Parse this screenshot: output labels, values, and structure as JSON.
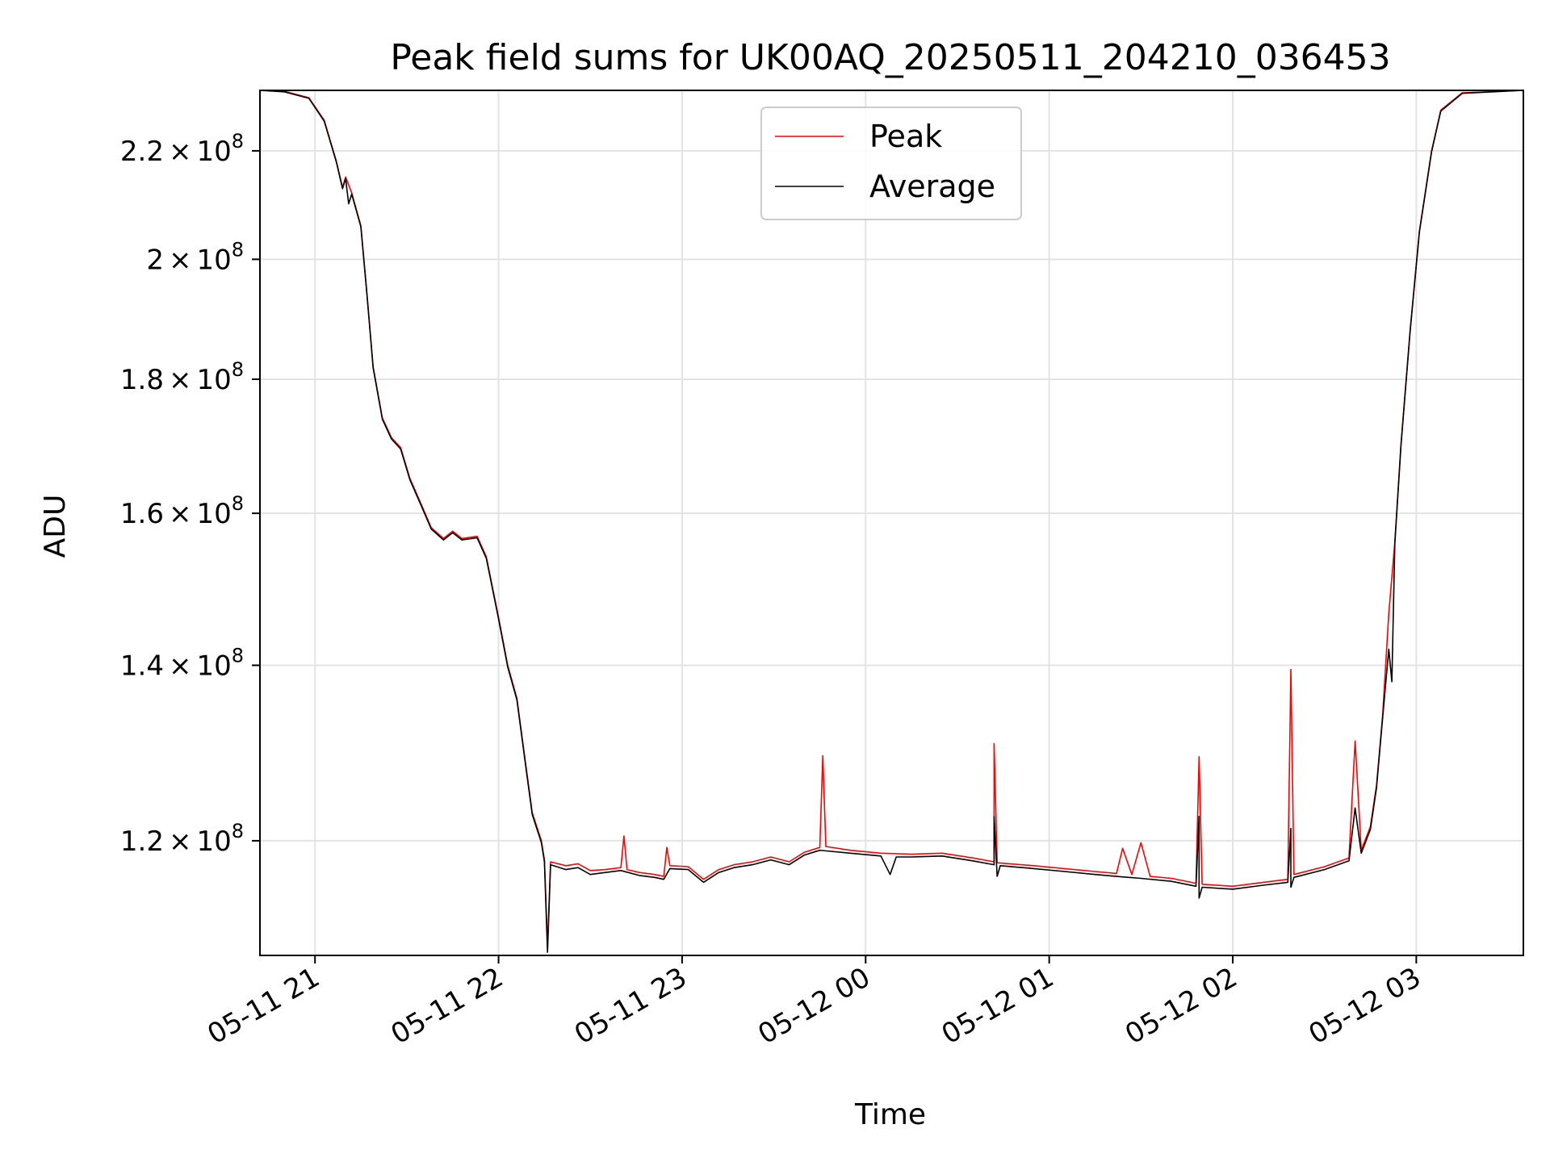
{
  "chart_data": {
    "type": "line",
    "title": "Peak field sums for UK00AQ_20250511_204210_036453",
    "xlabel": "Time",
    "ylabel": "ADU",
    "y_scale": "log",
    "grid": true,
    "legend_placement": "upper center",
    "xlim": [
      "2025-05-11 20:42",
      "2025-05-12 03:35"
    ],
    "ylim": [
      108500000,
      232000000
    ],
    "x_ticks": [
      {
        "value": "2025-05-11 21:00",
        "label": "05-11 21"
      },
      {
        "value": "2025-05-11 22:00",
        "label": "05-11 22"
      },
      {
        "value": "2025-05-11 23:00",
        "label": "05-11 23"
      },
      {
        "value": "2025-05-12 00:00",
        "label": "05-12 00"
      },
      {
        "value": "2025-05-12 01:00",
        "label": "05-12 01"
      },
      {
        "value": "2025-05-12 02:00",
        "label": "05-12 02"
      },
      {
        "value": "2025-05-12 03:00",
        "label": "05-12 03"
      }
    ],
    "y_ticks": [
      {
        "value": 120000000,
        "mantissa": "1.2"
      },
      {
        "value": 140000000,
        "mantissa": "1.4"
      },
      {
        "value": 160000000,
        "mantissa": "1.6"
      },
      {
        "value": 180000000,
        "mantissa": "1.8"
      },
      {
        "value": 200000000,
        "mantissa": "2"
      },
      {
        "value": 220000000,
        "mantissa": "2.2"
      }
    ],
    "y_tick_suffix": {
      "times": "×",
      "base": "10",
      "exponent": "8"
    },
    "series": [
      {
        "name": "Peak",
        "color": "#ff0000",
        "points": [
          [
            "2025-05-11 20:42",
            232000000
          ],
          [
            "2025-05-11 20:50",
            231800000
          ],
          [
            "2025-05-11 20:58",
            230500000
          ],
          [
            "2025-05-11 21:03",
            226000000
          ],
          [
            "2025-05-11 21:07",
            218000000
          ],
          [
            "2025-05-11 21:09",
            213000000
          ],
          [
            "2025-05-11 21:10",
            215000000
          ],
          [
            "2025-05-11 21:12",
            212000000
          ],
          [
            "2025-05-11 21:15",
            206000000
          ],
          [
            "2025-05-11 21:17",
            194000000
          ],
          [
            "2025-05-11 21:19",
            182000000
          ],
          [
            "2025-05-11 21:22",
            174000000
          ],
          [
            "2025-05-11 21:25",
            171000000
          ],
          [
            "2025-05-11 21:28",
            169500000
          ],
          [
            "2025-05-11 21:31",
            165000000
          ],
          [
            "2025-05-11 21:35",
            161000000
          ],
          [
            "2025-05-11 21:38",
            158000000
          ],
          [
            "2025-05-11 21:42",
            156500000
          ],
          [
            "2025-05-11 21:45",
            157500000
          ],
          [
            "2025-05-11 21:48",
            156500000
          ],
          [
            "2025-05-11 21:53",
            156800000
          ],
          [
            "2025-05-11 21:56",
            154000000
          ],
          [
            "2025-05-11 22:00",
            146000000
          ],
          [
            "2025-05-11 22:03",
            140000000
          ],
          [
            "2025-05-11 22:06",
            136000000
          ],
          [
            "2025-05-11 22:09",
            128000000
          ],
          [
            "2025-05-11 22:11",
            123000000
          ],
          [
            "2025-05-11 22:14",
            120000000
          ],
          [
            "2025-05-11 22:15",
            118000000
          ],
          [
            "2025-05-11 22:16",
            109500000
          ],
          [
            "2025-05-11 22:17",
            117800000
          ],
          [
            "2025-05-11 22:22",
            117400000
          ],
          [
            "2025-05-11 22:26",
            117600000
          ],
          [
            "2025-05-11 22:30",
            116900000
          ],
          [
            "2025-05-11 22:35",
            117000000
          ],
          [
            "2025-05-11 22:40",
            117200000
          ],
          [
            "2025-05-11 22:41",
            120500000
          ],
          [
            "2025-05-11 22:42",
            117000000
          ],
          [
            "2025-05-11 22:46",
            116700000
          ],
          [
            "2025-05-11 22:51",
            116500000
          ],
          [
            "2025-05-11 22:54",
            116300000
          ],
          [
            "2025-05-11 22:55",
            119300000
          ],
          [
            "2025-05-11 22:56",
            117400000
          ],
          [
            "2025-05-11 23:02",
            117300000
          ],
          [
            "2025-05-11 23:07",
            116000000
          ],
          [
            "2025-05-11 23:12",
            117000000
          ],
          [
            "2025-05-11 23:17",
            117500000
          ],
          [
            "2025-05-11 23:23",
            117800000
          ],
          [
            "2025-05-11 23:29",
            118300000
          ],
          [
            "2025-05-11 23:35",
            117800000
          ],
          [
            "2025-05-11 23:40",
            118800000
          ],
          [
            "2025-05-11 23:45",
            119300000
          ],
          [
            "2025-05-11 23:46",
            129300000
          ],
          [
            "2025-05-11 23:47",
            119400000
          ],
          [
            "2025-05-11 23:55",
            119000000
          ],
          [
            "2025-05-12 00:05",
            118700000
          ],
          [
            "2025-05-12 00:15",
            118600000
          ],
          [
            "2025-05-12 00:25",
            118700000
          ],
          [
            "2025-05-12 00:35",
            118200000
          ],
          [
            "2025-05-12 00:42",
            117800000
          ],
          [
            "2025-05-12 00:42",
            130700000
          ],
          [
            "2025-05-12 00:43",
            117700000
          ],
          [
            "2025-05-12 00:55",
            117400000
          ],
          [
            "2025-05-12 01:05",
            117100000
          ],
          [
            "2025-05-12 01:15",
            116800000
          ],
          [
            "2025-05-12 01:22",
            116600000
          ],
          [
            "2025-05-12 01:24",
            119200000
          ],
          [
            "2025-05-12 01:27",
            116500000
          ],
          [
            "2025-05-12 01:30",
            119800000
          ],
          [
            "2025-05-12 01:33",
            116300000
          ],
          [
            "2025-05-12 01:40",
            116100000
          ],
          [
            "2025-05-12 01:48",
            115600000
          ],
          [
            "2025-05-12 01:49",
            129200000
          ],
          [
            "2025-05-12 01:50",
            115500000
          ],
          [
            "2025-05-12 02:00",
            115300000
          ],
          [
            "2025-05-12 02:10",
            115700000
          ],
          [
            "2025-05-12 02:18",
            116000000
          ],
          [
            "2025-05-12 02:19",
            139500000
          ],
          [
            "2025-05-12 02:20",
            116500000
          ],
          [
            "2025-05-12 02:30",
            117300000
          ],
          [
            "2025-05-12 02:38",
            118200000
          ],
          [
            "2025-05-12 02:40",
            131000000
          ],
          [
            "2025-05-12 02:42",
            119000000
          ],
          [
            "2025-05-12 02:45",
            121500000
          ],
          [
            "2025-05-12 02:47",
            126000000
          ],
          [
            "2025-05-12 02:49",
            134000000
          ],
          [
            "2025-05-12 02:51",
            146500000
          ],
          [
            "2025-05-12 02:53",
            156000000
          ],
          [
            "2025-05-12 02:55",
            170000000
          ],
          [
            "2025-05-12 02:58",
            188000000
          ],
          [
            "2025-05-12 03:01",
            205000000
          ],
          [
            "2025-05-12 03:05",
            220000000
          ],
          [
            "2025-05-12 03:08",
            228000000
          ],
          [
            "2025-05-12 03:15",
            231500000
          ],
          [
            "2025-05-12 03:35",
            232000000
          ]
        ]
      },
      {
        "name": "Average",
        "color": "#000000",
        "points": [
          [
            "2025-05-11 20:42",
            232000000
          ],
          [
            "2025-05-11 20:50",
            231700000
          ],
          [
            "2025-05-11 20:58",
            230400000
          ],
          [
            "2025-05-11 21:03",
            225800000
          ],
          [
            "2025-05-11 21:07",
            217800000
          ],
          [
            "2025-05-11 21:09",
            212800000
          ],
          [
            "2025-05-11 21:10",
            214700000
          ],
          [
            "2025-05-11 21:11",
            210000000
          ],
          [
            "2025-05-11 21:12",
            211800000
          ],
          [
            "2025-05-11 21:15",
            205800000
          ],
          [
            "2025-05-11 21:17",
            193800000
          ],
          [
            "2025-05-11 21:19",
            181800000
          ],
          [
            "2025-05-11 21:22",
            173800000
          ],
          [
            "2025-05-11 21:25",
            170800000
          ],
          [
            "2025-05-11 21:28",
            169300000
          ],
          [
            "2025-05-11 21:31",
            164800000
          ],
          [
            "2025-05-11 21:35",
            160800000
          ],
          [
            "2025-05-11 21:38",
            157800000
          ],
          [
            "2025-05-11 21:42",
            156300000
          ],
          [
            "2025-05-11 21:45",
            157300000
          ],
          [
            "2025-05-11 21:48",
            156300000
          ],
          [
            "2025-05-11 21:53",
            156600000
          ],
          [
            "2025-05-11 21:56",
            153800000
          ],
          [
            "2025-05-11 22:00",
            145800000
          ],
          [
            "2025-05-11 22:03",
            139800000
          ],
          [
            "2025-05-11 22:06",
            135800000
          ],
          [
            "2025-05-11 22:09",
            127800000
          ],
          [
            "2025-05-11 22:11",
            122800000
          ],
          [
            "2025-05-11 22:14",
            119800000
          ],
          [
            "2025-05-11 22:15",
            117800000
          ],
          [
            "2025-05-11 22:16",
            108800000
          ],
          [
            "2025-05-11 22:17",
            117500000
          ],
          [
            "2025-05-11 22:22",
            117000000
          ],
          [
            "2025-05-11 22:26",
            117200000
          ],
          [
            "2025-05-11 22:30",
            116500000
          ],
          [
            "2025-05-11 22:35",
            116700000
          ],
          [
            "2025-05-11 22:40",
            116900000
          ],
          [
            "2025-05-11 22:46",
            116400000
          ],
          [
            "2025-05-11 22:51",
            116200000
          ],
          [
            "2025-05-11 22:54",
            116000000
          ],
          [
            "2025-05-11 22:56",
            117100000
          ],
          [
            "2025-05-11 23:02",
            117000000
          ],
          [
            "2025-05-11 23:07",
            115700000
          ],
          [
            "2025-05-11 23:12",
            116700000
          ],
          [
            "2025-05-11 23:17",
            117200000
          ],
          [
            "2025-05-11 23:23",
            117500000
          ],
          [
            "2025-05-11 23:29",
            118000000
          ],
          [
            "2025-05-11 23:35",
            117500000
          ],
          [
            "2025-05-11 23:40",
            118500000
          ],
          [
            "2025-05-11 23:45",
            119000000
          ],
          [
            "2025-05-11 23:55",
            118700000
          ],
          [
            "2025-05-12 00:05",
            118400000
          ],
          [
            "2025-05-12 00:08",
            116500000
          ],
          [
            "2025-05-12 00:10",
            118300000
          ],
          [
            "2025-05-12 00:15",
            118300000
          ],
          [
            "2025-05-12 00:25",
            118400000
          ],
          [
            "2025-05-12 00:35",
            117900000
          ],
          [
            "2025-05-12 00:42",
            117500000
          ],
          [
            "2025-05-12 00:42",
            122600000
          ],
          [
            "2025-05-12 00:43",
            116300000
          ],
          [
            "2025-05-12 00:44",
            117400000
          ],
          [
            "2025-05-12 00:55",
            117100000
          ],
          [
            "2025-05-12 01:05",
            116800000
          ],
          [
            "2025-05-12 01:15",
            116500000
          ],
          [
            "2025-05-12 01:22",
            116300000
          ],
          [
            "2025-05-12 01:30",
            116100000
          ],
          [
            "2025-05-12 01:40",
            115800000
          ],
          [
            "2025-05-12 01:48",
            115300000
          ],
          [
            "2025-05-12 01:49",
            122600000
          ],
          [
            "2025-05-12 01:49",
            114100000
          ],
          [
            "2025-05-12 01:50",
            115200000
          ],
          [
            "2025-05-12 02:00",
            115000000
          ],
          [
            "2025-05-12 02:10",
            115400000
          ],
          [
            "2025-05-12 02:18",
            115700000
          ],
          [
            "2025-05-12 02:19",
            121300000
          ],
          [
            "2025-05-12 02:19",
            115200000
          ],
          [
            "2025-05-12 02:20",
            116200000
          ],
          [
            "2025-05-12 02:30",
            117000000
          ],
          [
            "2025-05-12 02:38",
            117900000
          ],
          [
            "2025-05-12 02:40",
            123500000
          ],
          [
            "2025-05-12 02:42",
            118700000
          ],
          [
            "2025-05-12 02:45",
            121200000
          ],
          [
            "2025-05-12 02:47",
            125700000
          ],
          [
            "2025-05-12 02:49",
            133700000
          ],
          [
            "2025-05-12 02:51",
            142000000
          ],
          [
            "2025-05-12 02:52",
            138000000
          ],
          [
            "2025-05-12 02:53",
            155800000
          ],
          [
            "2025-05-12 02:55",
            169800000
          ],
          [
            "2025-05-12 02:58",
            187800000
          ],
          [
            "2025-05-12 03:01",
            204800000
          ],
          [
            "2025-05-12 03:05",
            219800000
          ],
          [
            "2025-05-12 03:08",
            227800000
          ],
          [
            "2025-05-12 03:15",
            231400000
          ],
          [
            "2025-05-12 03:35",
            232000000
          ]
        ]
      }
    ]
  }
}
